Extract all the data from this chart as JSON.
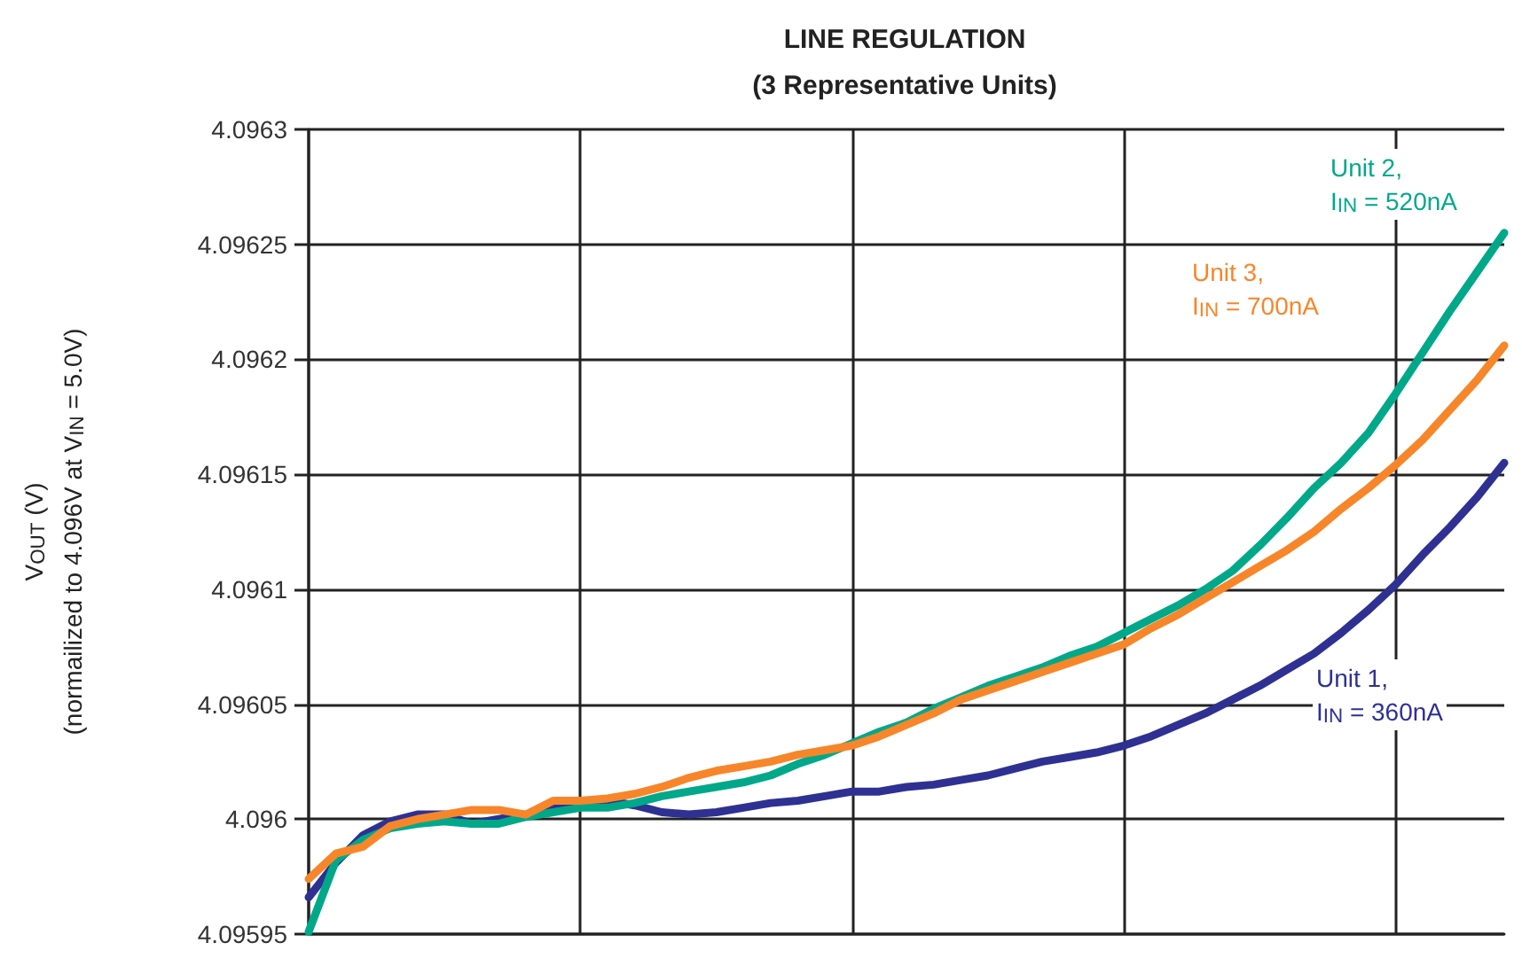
{
  "chart_data": {
    "type": "line",
    "title": "LINE REGULATION",
    "subtitle": "(3 Representative Units)",
    "ylabel": "V$_{OUT}$ (V)\n(normailized to 4.096V at V$_{IN}$ = 5.0V)",
    "categories": [
      null,
      null,
      null,
      null,
      null,
      null,
      null,
      null,
      null,
      null,
      null,
      null,
      null,
      null,
      null,
      null,
      null,
      null,
      null,
      null,
      null,
      null,
      null,
      null,
      null,
      null,
      null,
      null,
      null,
      null,
      null,
      null,
      null,
      null,
      null,
      null,
      null,
      null,
      null,
      null,
      null,
      null,
      null,
      null,
      null
    ],
    "series": [
      {
        "name": "Unit 1,\nI$_{IN}$ = 360nA",
        "color": "#2e3192",
        "values": [
          4.095966,
          4.095981,
          4.095993,
          4.095999,
          4.096002,
          4.096002,
          4.095998,
          4.096,
          4.096002,
          4.096005,
          4.096007,
          4.096008,
          4.096006,
          4.096003,
          4.096002,
          4.096003,
          4.096005,
          4.096007,
          4.096008,
          4.09601,
          4.096012,
          4.096012,
          4.096014,
          4.096015,
          4.096017,
          4.096019,
          4.096022,
          4.096025,
          4.096027,
          4.096029,
          4.096032,
          4.096036,
          4.096041,
          4.096046,
          4.096052,
          4.096058,
          4.096065,
          4.096072,
          4.096081,
          4.096091,
          4.096102,
          4.096115,
          4.096127,
          4.09614,
          4.096155
        ]
      },
      {
        "name": "Unit 2,\nI$_{IN}$ = 520nA",
        "color": "#00a88a",
        "values": [
          4.095951,
          4.095982,
          4.095991,
          4.095996,
          4.095998,
          4.095999,
          4.095998,
          4.095998,
          4.096001,
          4.096003,
          4.096005,
          4.096005,
          4.096007,
          4.09601,
          4.096012,
          4.096014,
          4.096016,
          4.096019,
          4.096024,
          4.096028,
          4.096033,
          4.096038,
          4.096042,
          4.096048,
          4.096053,
          4.096058,
          4.096062,
          4.096066,
          4.096071,
          4.096075,
          4.096081,
          4.096087,
          4.096093,
          4.0961,
          4.096108,
          4.096119,
          4.096131,
          4.096144,
          4.096155,
          4.096168,
          4.096185,
          4.096203,
          4.096221,
          4.096238,
          4.096255
        ]
      },
      {
        "name": "Unit 3,\nI$_{IN}$ = 700nA",
        "color": "#f7862a",
        "values": [
          4.095974,
          4.095985,
          4.095988,
          4.095997,
          4.096,
          4.096002,
          4.096004,
          4.096004,
          4.096002,
          4.096008,
          4.096008,
          4.096009,
          4.096011,
          4.096014,
          4.096018,
          4.096021,
          4.096023,
          4.096025,
          4.096028,
          4.09603,
          4.096032,
          4.096036,
          4.096041,
          4.096046,
          4.096052,
          4.096056,
          4.09606,
          4.096064,
          4.096068,
          4.096072,
          4.096076,
          4.096083,
          4.096089,
          4.096096,
          4.096103,
          4.09611,
          4.096117,
          4.096125,
          4.096135,
          4.096144,
          4.096154,
          4.096165,
          4.096178,
          4.096191,
          4.096206
        ]
      }
    ],
    "ylim": [
      4.09595,
      4.0963
    ],
    "yticks": [
      4.09595,
      4.096,
      4.09605,
      4.0961,
      4.09615,
      4.0962,
      4.09625,
      4.0963
    ],
    "grid": true,
    "tick_labels": "y",
    "marker": "none",
    "line_style": "solid"
  }
}
